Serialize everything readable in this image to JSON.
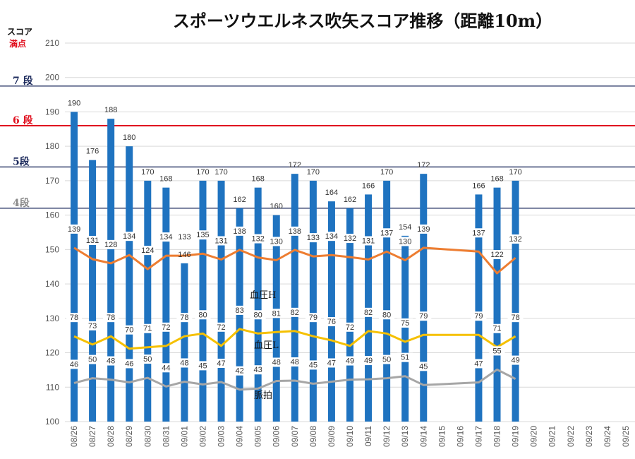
{
  "chart_data": {
    "type": "bar",
    "title": "スポーツウエルネス吹矢スコア推移（距離10m）",
    "ylabel": "スコア",
    "ylabel_sub": "満点",
    "ylim": [
      100,
      210
    ],
    "yticks": [
      100,
      110,
      120,
      130,
      140,
      150,
      160,
      170,
      180,
      190,
      200,
      210
    ],
    "categories": [
      "08/26",
      "08/27",
      "08/28",
      "08/29",
      "08/30",
      "08/31",
      "09/01",
      "09/02",
      "09/03",
      "09/04",
      "09/05",
      "09/06",
      "09/07",
      "09/08",
      "09/09",
      "09/10",
      "09/11",
      "09/12",
      "09/13",
      "09/14",
      "09/15",
      "09/16",
      "09/17",
      "09/18",
      "09/19",
      "09/20",
      "09/21",
      "09/22",
      "09/23",
      "09/24",
      "09/25"
    ],
    "series": [
      {
        "type": "bar",
        "color": "#1f73c0",
        "values": [
          190,
          176,
          188,
          180,
          170,
          168,
          146,
          170,
          170,
          162,
          168,
          160,
          172,
          170,
          164,
          162,
          166,
          170,
          154,
          172,
          null,
          null,
          166,
          168,
          170,
          null,
          null,
          null,
          null,
          null,
          null
        ],
        "labels": [
          "190",
          "176",
          "188",
          "180",
          "170",
          "168",
          "146",
          "170",
          "170",
          "162",
          "168",
          "160",
          "172",
          "170",
          "164",
          "162",
          "166",
          "170",
          "154",
          "172",
          "",
          "",
          "166",
          "168",
          "170",
          "",
          "",
          "",
          "",
          "",
          ""
        ]
      },
      {
        "name": "血圧H",
        "type": "line",
        "color": "#ed7d31",
        "values": [
          150.5,
          147.2,
          146,
          148.4,
          144.3,
          148.2,
          148.2,
          148.8,
          147.1,
          149.9,
          147.7,
          146.9,
          149.9,
          148,
          148.4,
          147.8,
          147.1,
          149.4,
          146.9,
          150.5,
          null,
          null,
          149.4,
          143.1,
          147.6,
          null,
          null,
          null,
          null,
          null,
          null
        ],
        "labels": [
          "139",
          "131",
          "128",
          "134",
          "124",
          "134",
          "133",
          "135",
          "131",
          "138",
          "132",
          "130",
          "138",
          "133",
          "134",
          "132",
          "131",
          "137",
          "130",
          "139",
          "",
          "",
          "137",
          "122",
          "132",
          "",
          "",
          "",
          "",
          "",
          ""
        ]
      },
      {
        "name": "血圧L",
        "type": "line",
        "color": "#f5c000",
        "values": [
          124.8,
          122.4,
          124.8,
          121.2,
          121.6,
          122,
          124.8,
          125.6,
          122,
          126.9,
          125.6,
          126,
          126.3,
          124.8,
          123.6,
          122,
          126.3,
          125.6,
          123.2,
          125.2,
          null,
          null,
          125.2,
          121.6,
          124.8,
          null,
          null,
          null,
          null,
          null,
          null
        ],
        "labels": [
          "78",
          "73",
          "78",
          "70",
          "71",
          "72",
          "78",
          "80",
          "72",
          "83",
          "80",
          "81",
          "82",
          "79",
          "76",
          "72",
          "82",
          "80",
          "75",
          "79",
          "",
          "",
          "79",
          "71",
          "78",
          "",
          "",
          "",
          "",
          "",
          ""
        ]
      },
      {
        "name": "脈拍",
        "type": "line",
        "color": "#a6a6a6",
        "values": [
          111.2,
          112.6,
          112.2,
          111.4,
          112.7,
          110.2,
          111.6,
          110.8,
          111.5,
          109.3,
          109.6,
          111.8,
          111.9,
          111,
          111.6,
          112.2,
          112.3,
          112.6,
          113.2,
          110.6,
          null,
          null,
          111.4,
          115.1,
          112.4,
          null,
          null,
          null,
          null,
          null,
          null
        ],
        "labels": [
          "46",
          "50",
          "48",
          "46",
          "50",
          "44",
          "48",
          "45",
          "47",
          "42",
          "43",
          "48",
          "48",
          "45",
          "47",
          "49",
          "49",
          "50",
          "51",
          "45",
          "",
          "",
          "47",
          "55",
          "49",
          "",
          "",
          "",
          "",
          "",
          ""
        ]
      }
    ],
    "reference_lines": [
      {
        "label": "7 段",
        "value": 197.5,
        "color": "#1c2a5c"
      },
      {
        "label": "6 段",
        "value": 186,
        "color": "#e0101f"
      },
      {
        "label": "5段",
        "value": 174,
        "color": "#1c2a5c"
      },
      {
        "label": "4段",
        "value": 162,
        "color": "#1c2a5c"
      }
    ],
    "grid": true,
    "legend": "none"
  }
}
